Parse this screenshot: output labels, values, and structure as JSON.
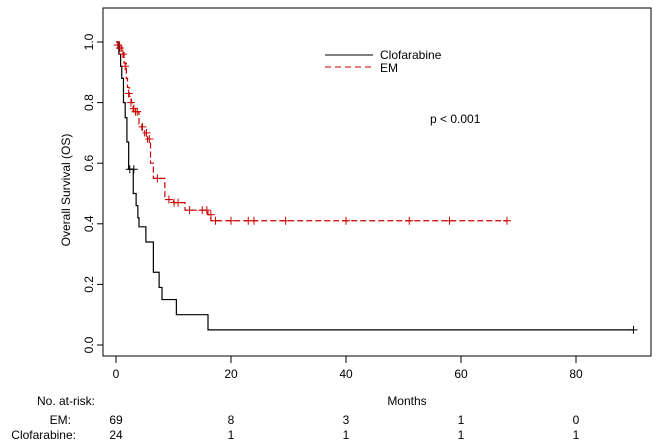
{
  "chart_data": {
    "type": "line",
    "subtype": "kaplan-meier",
    "xlabel": "Months",
    "ylabel": "Overall Survival (OS)",
    "xlim": [
      0,
      93
    ],
    "ylim": [
      -0.03,
      1.06
    ],
    "x_ticks": [
      0,
      20,
      40,
      60,
      80
    ],
    "x_tick_labels": [
      "0",
      "20",
      "40",
      "60",
      "80"
    ],
    "y_ticks": [
      0.0,
      0.2,
      0.4,
      0.6,
      0.8,
      1.0
    ],
    "y_tick_labels": [
      "0.0",
      "0.2",
      "0.4",
      "0.6",
      "0.8",
      "1.0"
    ],
    "grid": false,
    "legend_position": "top-center",
    "annotation": "p < 0.001",
    "series": [
      {
        "name": "Clofarabine",
        "color": "#000000",
        "line_style": "solid",
        "steps": [
          [
            0,
            1.0
          ],
          [
            0.5,
            0.96
          ],
          [
            0.8,
            0.92
          ],
          [
            1.0,
            0.88
          ],
          [
            1.3,
            0.8
          ],
          [
            1.6,
            0.75
          ],
          [
            1.9,
            0.67
          ],
          [
            2.2,
            0.58
          ],
          [
            3.0,
            0.5
          ],
          [
            3.5,
            0.46
          ],
          [
            3.8,
            0.42
          ],
          [
            4.0,
            0.39
          ],
          [
            5.2,
            0.34
          ],
          [
            6.5,
            0.24
          ],
          [
            7.5,
            0.19
          ],
          [
            8.0,
            0.15
          ],
          [
            10.5,
            0.1
          ],
          [
            16.0,
            0.05
          ],
          [
            90.0,
            0.05
          ]
        ],
        "censor_marks": [
          [
            2.4,
            0.58
          ],
          [
            3.1,
            0.58
          ],
          [
            90.0,
            0.05
          ]
        ]
      },
      {
        "name": "EM",
        "color": "#cc0000",
        "line_style": "dashed",
        "steps": [
          [
            0,
            1.0
          ],
          [
            0.6,
            0.99
          ],
          [
            1.0,
            0.97
          ],
          [
            1.4,
            0.93
          ],
          [
            1.8,
            0.88
          ],
          [
            2.0,
            0.85
          ],
          [
            2.3,
            0.82
          ],
          [
            2.7,
            0.8
          ],
          [
            3.0,
            0.77
          ],
          [
            4.0,
            0.73
          ],
          [
            4.5,
            0.71
          ],
          [
            5.0,
            0.69
          ],
          [
            5.5,
            0.67
          ],
          [
            6.0,
            0.6
          ],
          [
            6.5,
            0.55
          ],
          [
            8.5,
            0.48
          ],
          [
            10.0,
            0.47
          ],
          [
            12.0,
            0.445
          ],
          [
            16.0,
            0.43
          ],
          [
            16.5,
            0.41
          ],
          [
            68.0,
            0.41
          ]
        ],
        "censor_marks": [
          [
            0.3,
            0.99
          ],
          [
            0.7,
            0.98
          ],
          [
            1.2,
            0.96
          ],
          [
            1.6,
            0.92
          ],
          [
            2.2,
            0.83
          ],
          [
            2.6,
            0.8
          ],
          [
            3.1,
            0.78
          ],
          [
            3.4,
            0.77
          ],
          [
            3.7,
            0.77
          ],
          [
            4.6,
            0.72
          ],
          [
            5.3,
            0.7
          ],
          [
            5.8,
            0.68
          ],
          [
            7.2,
            0.55
          ],
          [
            9.2,
            0.48
          ],
          [
            10.1,
            0.47
          ],
          [
            10.8,
            0.47
          ],
          [
            12.8,
            0.445
          ],
          [
            15.0,
            0.445
          ],
          [
            15.8,
            0.445
          ],
          [
            16.5,
            0.43
          ],
          [
            17.3,
            0.41
          ],
          [
            20.0,
            0.41
          ],
          [
            23.0,
            0.41
          ],
          [
            24.0,
            0.41
          ],
          [
            29.5,
            0.41
          ],
          [
            40.0,
            0.41
          ],
          [
            51.0,
            0.41
          ],
          [
            58.0,
            0.41
          ],
          [
            68.0,
            0.41
          ]
        ]
      }
    ],
    "at_risk": {
      "title": "No. at-risk:",
      "rows": [
        {
          "label": "EM:",
          "values": [
            "69",
            "8",
            "3",
            "1",
            "0"
          ]
        },
        {
          "label": "Clofarabine:",
          "values": [
            "24",
            "1",
            "1",
            "1",
            "1"
          ]
        }
      ]
    }
  }
}
